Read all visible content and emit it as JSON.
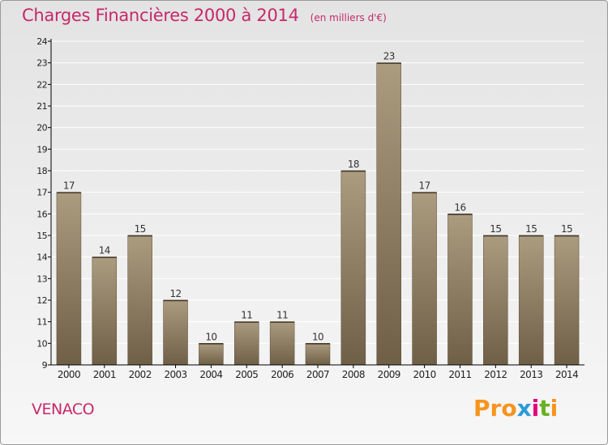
{
  "title": "Charges Financières 2000 à 2014",
  "unit_note": "(en milliers d'€)",
  "commune": "VENACO",
  "logo": {
    "text": "Proxiti",
    "letters": [
      "P",
      "r",
      "o",
      "x",
      "i",
      "t",
      "i"
    ],
    "colors": [
      "#f7941d",
      "#f7941d",
      "#f7941d",
      "#2e9ad8",
      "#e4007c",
      "#6ab023",
      "#f7941d"
    ]
  },
  "colors": {
    "accent": "#c7286a",
    "bar_top": "#ab9b7f",
    "bar_bottom": "#6f5f47",
    "axis": "#000000",
    "grid": "#ffffff"
  },
  "chart_data": {
    "type": "bar",
    "title": "Charges Financières 2000 à 2014",
    "subtitle": "(en milliers d'€)",
    "xlabel": "",
    "ylabel": "",
    "categories": [
      "2000",
      "2001",
      "2002",
      "2003",
      "2004",
      "2005",
      "2006",
      "2007",
      "2008",
      "2009",
      "2010",
      "2011",
      "2012",
      "2013",
      "2014"
    ],
    "values": [
      17,
      14,
      15,
      12,
      10,
      11,
      11,
      10,
      18,
      23,
      17,
      16,
      15,
      15,
      15
    ],
    "ylim": [
      9,
      24
    ],
    "yticks": [
      9,
      10,
      11,
      12,
      13,
      14,
      15,
      16,
      17,
      18,
      19,
      20,
      21,
      22,
      23,
      24
    ],
    "grid": true,
    "data_labels": true
  }
}
